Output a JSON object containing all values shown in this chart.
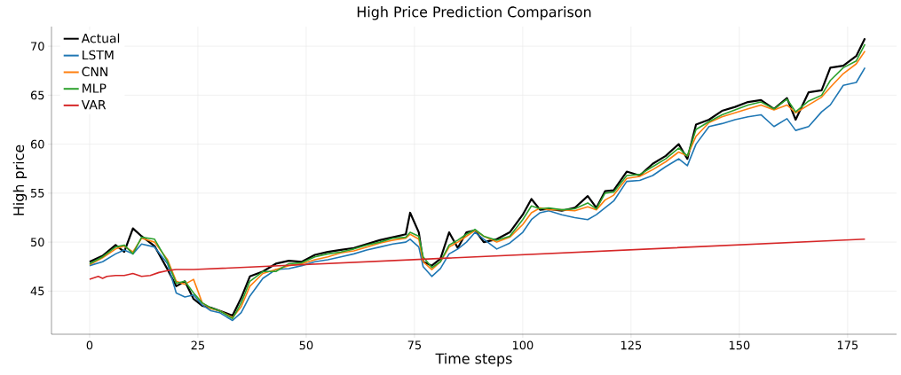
{
  "chart_data": {
    "type": "line",
    "title": "High Price Prediction Comparison",
    "xlabel": "Time steps",
    "ylabel": "High price",
    "x": [
      0,
      3,
      6,
      8,
      10,
      12,
      15,
      18,
      20,
      22,
      24,
      26,
      28,
      30,
      33,
      35,
      37,
      40,
      43,
      46,
      49,
      52,
      55,
      58,
      61,
      64,
      67,
      70,
      73,
      74,
      76,
      77,
      79,
      81,
      83,
      85,
      87,
      89,
      91,
      94,
      97,
      100,
      102,
      104,
      106,
      109,
      112,
      115,
      117,
      119,
      121,
      124,
      127,
      130,
      133,
      136,
      138,
      140,
      143,
      146,
      149,
      152,
      155,
      158,
      161,
      163,
      166,
      169,
      171,
      174,
      177,
      179
    ],
    "series": [
      {
        "name": "Actual",
        "color": "#000000",
        "values": [
          48.0,
          48.6,
          49.7,
          49.0,
          51.4,
          50.6,
          49.6,
          47.2,
          45.5,
          46.0,
          44.2,
          43.5,
          43.3,
          43.0,
          42.5,
          44.3,
          46.5,
          47.0,
          47.8,
          48.1,
          48.0,
          48.7,
          49.0,
          49.2,
          49.4,
          49.8,
          50.2,
          50.5,
          50.8,
          53.0,
          51.0,
          48.0,
          47.6,
          48.3,
          51.0,
          49.4,
          51.0,
          51.2,
          50.0,
          50.3,
          51.0,
          52.8,
          54.4,
          53.3,
          53.4,
          53.2,
          53.5,
          54.7,
          53.5,
          55.2,
          55.3,
          57.2,
          56.8,
          58.0,
          58.8,
          60.0,
          58.5,
          62.0,
          62.5,
          63.4,
          63.8,
          64.3,
          64.5,
          63.6,
          64.7,
          62.5,
          65.3,
          65.5,
          67.8,
          68.0,
          69.0,
          70.8
        ]
      },
      {
        "name": "LSTM",
        "color": "#1f77b4",
        "values": [
          47.6,
          48.0,
          48.8,
          49.2,
          48.8,
          49.8,
          49.5,
          47.8,
          44.8,
          44.4,
          44.6,
          43.6,
          43.0,
          42.8,
          42.0,
          42.8,
          44.5,
          46.3,
          47.2,
          47.3,
          47.6,
          48.0,
          48.2,
          48.5,
          48.8,
          49.2,
          49.5,
          49.8,
          50.0,
          50.3,
          49.5,
          47.5,
          46.5,
          47.3,
          48.8,
          49.3,
          50.0,
          51.0,
          50.3,
          49.3,
          49.9,
          51.0,
          52.3,
          53.0,
          53.2,
          52.8,
          52.5,
          52.3,
          52.8,
          53.5,
          54.2,
          56.2,
          56.3,
          56.8,
          57.7,
          58.5,
          57.8,
          60.0,
          61.8,
          62.1,
          62.5,
          62.8,
          63.0,
          61.8,
          62.6,
          61.4,
          61.8,
          63.3,
          64.0,
          66.0,
          66.3,
          67.8
        ]
      },
      {
        "name": "CNN",
        "color": "#ff7f0e",
        "values": [
          47.7,
          48.4,
          49.3,
          49.6,
          49.0,
          50.4,
          50.0,
          48.2,
          46.0,
          45.7,
          46.2,
          43.8,
          43.2,
          43.0,
          42.3,
          43.4,
          45.5,
          46.8,
          47.2,
          47.6,
          47.8,
          48.2,
          48.5,
          48.9,
          49.1,
          49.5,
          49.9,
          50.2,
          50.4,
          50.8,
          50.3,
          48.0,
          47.2,
          48.0,
          49.5,
          50.0,
          50.6,
          51.2,
          50.6,
          50.0,
          50.5,
          51.8,
          53.0,
          53.5,
          53.3,
          53.3,
          53.2,
          53.6,
          53.3,
          54.3,
          54.8,
          56.5,
          56.7,
          57.4,
          58.2,
          59.2,
          58.8,
          60.8,
          62.2,
          62.8,
          63.2,
          63.6,
          64.0,
          63.5,
          64.0,
          63.2,
          64.0,
          64.8,
          65.8,
          67.2,
          68.2,
          69.5
        ]
      },
      {
        "name": "MLP",
        "color": "#2ca02c",
        "values": [
          47.8,
          48.5,
          49.5,
          49.7,
          48.8,
          50.5,
          50.3,
          48.0,
          45.8,
          46.0,
          44.8,
          43.8,
          43.3,
          43.0,
          42.2,
          43.8,
          46.0,
          47.0,
          47.0,
          47.8,
          47.9,
          48.5,
          48.8,
          49.0,
          49.3,
          49.7,
          50.0,
          50.4,
          50.5,
          51.0,
          50.6,
          48.5,
          47.4,
          48.0,
          49.7,
          50.2,
          50.8,
          51.3,
          50.6,
          50.2,
          50.6,
          52.3,
          53.7,
          53.4,
          53.5,
          53.3,
          53.4,
          54.0,
          53.4,
          55.0,
          55.1,
          56.8,
          56.9,
          57.7,
          58.5,
          59.6,
          58.8,
          61.5,
          62.3,
          63.0,
          63.5,
          64.0,
          64.3,
          63.6,
          64.6,
          63.3,
          64.4,
          65.0,
          66.5,
          67.8,
          68.5,
          70.2
        ]
      },
      {
        "name": "VAR",
        "color": "#d62728",
        "x": [
          0,
          2,
          3,
          4,
          6,
          8,
          10,
          12,
          14,
          16,
          18,
          20,
          24,
          179
        ],
        "values": [
          46.2,
          46.5,
          46.3,
          46.5,
          46.6,
          46.6,
          46.8,
          46.5,
          46.6,
          46.9,
          47.1,
          47.2,
          47.2,
          50.3
        ]
      }
    ],
    "xlim": [
      -8.8,
      186.3
    ],
    "ylim": [
      40.6,
      72.0
    ],
    "xticks": [
      0,
      25,
      50,
      75,
      100,
      125,
      150,
      175
    ],
    "yticks": [
      45,
      50,
      55,
      60,
      65,
      70
    ],
    "grid": true,
    "legend": "top left"
  }
}
